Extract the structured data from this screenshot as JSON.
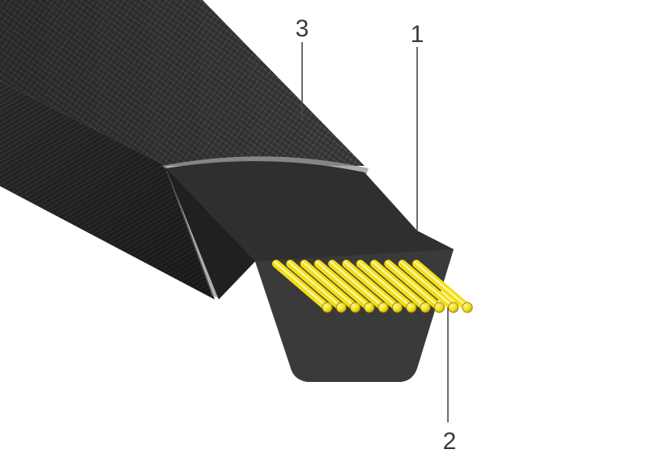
{
  "callouts": [
    {
      "id": "callout-1",
      "label": "1"
    },
    {
      "id": "callout-2",
      "label": "2"
    },
    {
      "id": "callout-3",
      "label": "3"
    }
  ],
  "cord_count": 11,
  "colors": {
    "belt_cover": "#3b3b3b",
    "belt_cover_dark": "#1f1f1f",
    "rubber_core": "#2f2f2f",
    "cord_yellow": "#f2de1a",
    "cord_outline": "#8a7a00",
    "leader_line": "#4a4a4a",
    "label_text": "#3a3a3a"
  }
}
